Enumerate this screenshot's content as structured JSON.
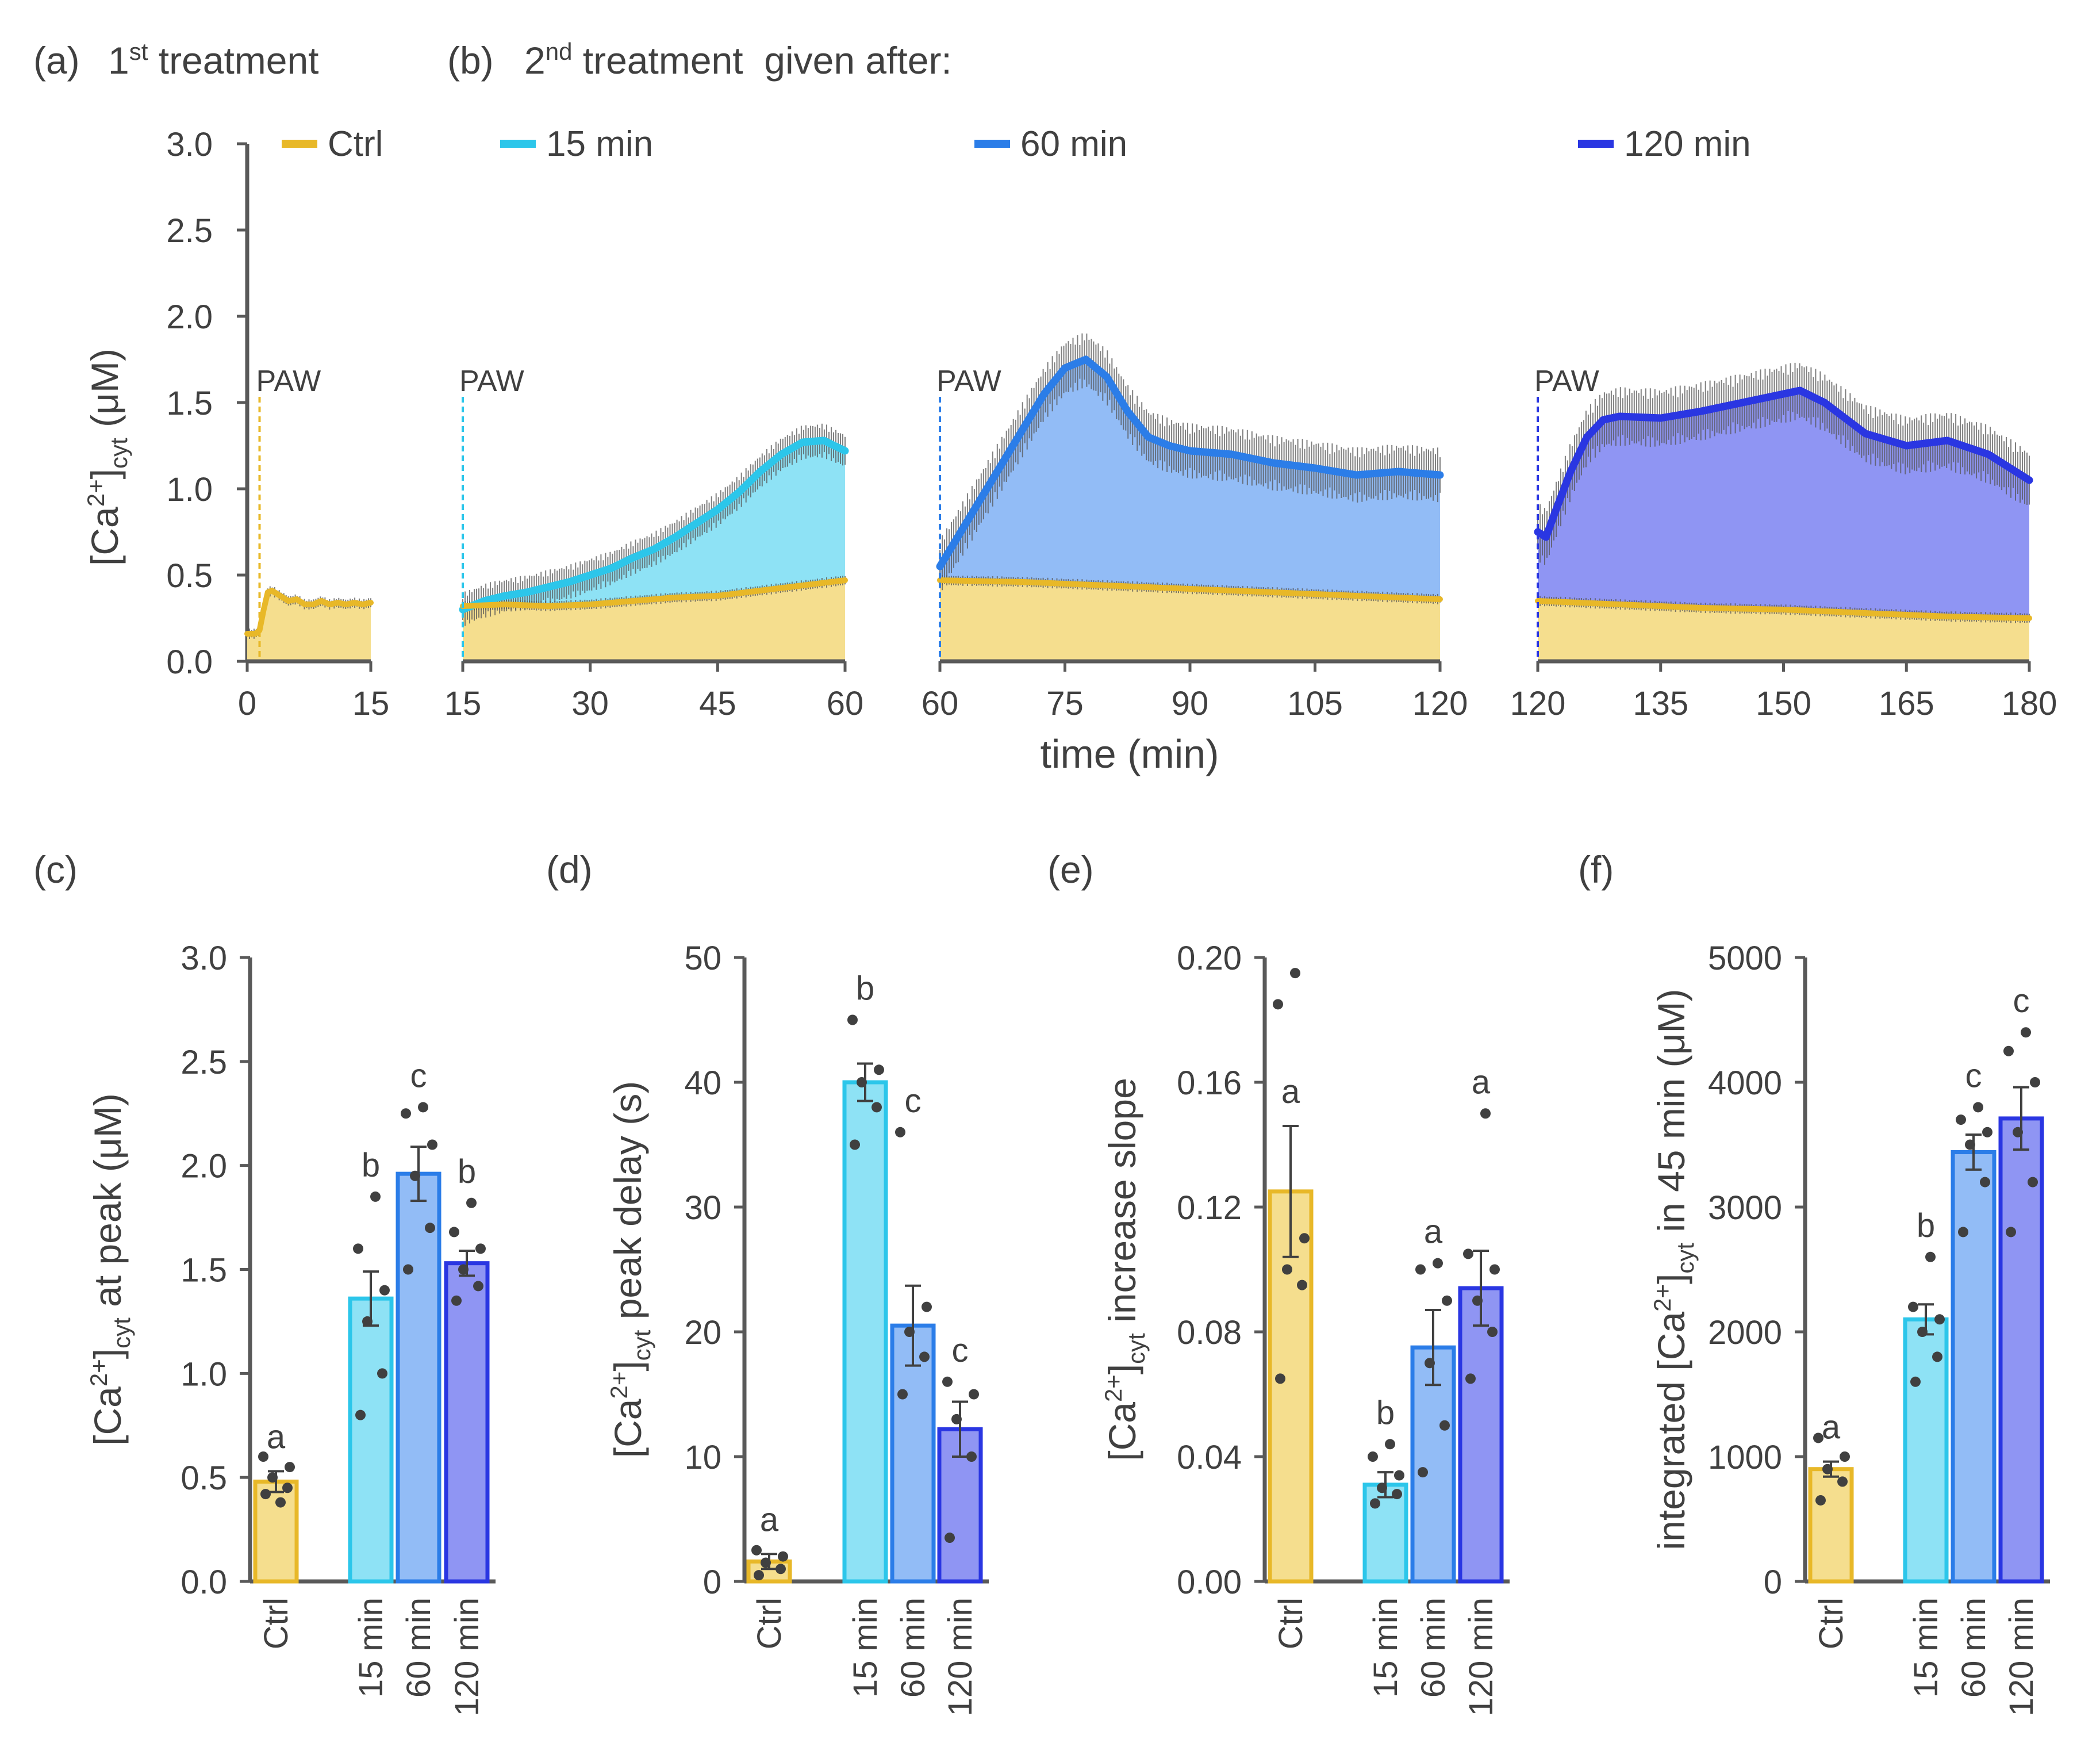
{
  "colors": {
    "ctrl": "#E8B828",
    "ctrl_fill": "#F5DE8E",
    "m15": "#2CC6EA",
    "m15_fill": "#8EE2F5",
    "m60": "#2B7DE8",
    "m60_fill": "#92BCF6",
    "m120": "#2A36E2",
    "m120_fill": "#8F95F3",
    "axis": "#595959",
    "text": "#404040",
    "error": "#404040",
    "dots": "#404040"
  },
  "panel_labels": {
    "a": "(a)",
    "a_title_pre": "1",
    "a_title_sup": "st",
    "a_title_post": " treatment",
    "b": "(b)",
    "b_title_pre": "2",
    "b_title_sup": "nd",
    "b_title_post": " treatment  given after:",
    "c": "(c)",
    "d": "(d)",
    "e": "(e)",
    "f": "(f)"
  },
  "chart_data": [
    {
      "type": "line",
      "id": "time-course",
      "title": "",
      "xlabel": "time (min)",
      "ylabel_pre": "[Ca",
      "ylabel_sup": "2+",
      "ylabel_mid": "]",
      "ylabel_sub": "cyt",
      "ylabel_post": " (μM)",
      "ylim": [
        0,
        3
      ],
      "yticks": [
        "0.0",
        "0.5",
        "1.0",
        "1.5",
        "2.0",
        "2.5",
        "3.0"
      ],
      "treatment_label": "PAW",
      "legend": [
        {
          "name": "Ctrl",
          "color_key": "ctrl"
        },
        {
          "name": "15 min",
          "color_key": "m15"
        },
        {
          "name": "60 min",
          "color_key": "m60"
        },
        {
          "name": "120 min",
          "color_key": "m120"
        }
      ],
      "segments": [
        {
          "name": "1st treatment",
          "xlim": [
            0,
            15
          ],
          "xticks": [
            "0",
            "15"
          ],
          "treatment_time": 1.5,
          "series": [
            {
              "name": "Ctrl",
              "color_key": "ctrl",
              "x": [
                0,
                1,
                1.5,
                2,
                2.5,
                3,
                4,
                5,
                6,
                7,
                8,
                9,
                10,
                11,
                12,
                13,
                14,
                15
              ],
              "y": [
                0.16,
                0.16,
                0.18,
                0.3,
                0.4,
                0.41,
                0.38,
                0.35,
                0.36,
                0.33,
                0.33,
                0.35,
                0.33,
                0.34,
                0.33,
                0.34,
                0.33,
                0.34
              ]
            }
          ]
        },
        {
          "name": "15 min",
          "xlim": [
            15,
            60
          ],
          "xticks": [
            "15",
            "30",
            "45",
            "60"
          ],
          "treatment_time": 15,
          "series": [
            {
              "name": "Ctrl",
              "color_key": "ctrl",
              "x": [
                15,
                20,
                25,
                30,
                35,
                40,
                45,
                50,
                55,
                60
              ],
              "y": [
                0.32,
                0.33,
                0.32,
                0.33,
                0.35,
                0.37,
                0.38,
                0.41,
                0.44,
                0.47
              ]
            },
            {
              "name": "15 min",
              "color_key": "m15",
              "error": 0.1,
              "x": [
                15,
                17.5,
                20,
                22.5,
                25,
                27.5,
                30,
                32.5,
                35,
                37.5,
                40,
                42.5,
                45,
                47.5,
                50,
                52.5,
                55,
                57.5,
                60
              ],
              "y": [
                0.3,
                0.35,
                0.38,
                0.4,
                0.43,
                0.46,
                0.5,
                0.54,
                0.6,
                0.65,
                0.72,
                0.8,
                0.88,
                0.98,
                1.1,
                1.2,
                1.27,
                1.28,
                1.22
              ]
            }
          ]
        },
        {
          "name": "60 min",
          "xlim": [
            60,
            120
          ],
          "xticks": [
            "60",
            "75",
            "90",
            "105",
            "120"
          ],
          "treatment_time": 60,
          "series": [
            {
              "name": "Ctrl",
              "color_key": "ctrl",
              "x": [
                60,
                70,
                80,
                90,
                100,
                110,
                120
              ],
              "y": [
                0.47,
                0.46,
                0.44,
                0.42,
                0.4,
                0.38,
                0.36
              ]
            },
            {
              "name": "60 min",
              "color_key": "m60",
              "error": 0.16,
              "x": [
                60,
                62.5,
                65,
                67.5,
                70,
                72.5,
                75,
                77.5,
                80,
                82.5,
                85,
                87.5,
                90,
                95,
                100,
                105,
                110,
                115,
                120
              ],
              "y": [
                0.55,
                0.75,
                0.95,
                1.15,
                1.35,
                1.55,
                1.7,
                1.75,
                1.65,
                1.45,
                1.3,
                1.25,
                1.22,
                1.2,
                1.15,
                1.12,
                1.08,
                1.1,
                1.08
              ]
            }
          ]
        },
        {
          "name": "120 min",
          "xlim": [
            120,
            180
          ],
          "xticks": [
            "120",
            "135",
            "150",
            "165",
            "180"
          ],
          "treatment_time": 120,
          "series": [
            {
              "name": "Ctrl",
              "color_key": "ctrl",
              "x": [
                120,
                130,
                140,
                150,
                160,
                170,
                180
              ],
              "y": [
                0.35,
                0.33,
                0.31,
                0.3,
                0.28,
                0.26,
                0.25
              ]
            },
            {
              "name": "120 min",
              "color_key": "m120",
              "error": 0.17,
              "x": [
                120,
                121,
                122,
                124,
                126,
                128,
                130,
                135,
                140,
                145,
                150,
                152,
                155,
                160,
                165,
                170,
                175,
                180
              ],
              "y": [
                0.75,
                0.72,
                0.85,
                1.1,
                1.3,
                1.4,
                1.42,
                1.41,
                1.45,
                1.5,
                1.55,
                1.57,
                1.5,
                1.32,
                1.25,
                1.28,
                1.2,
                1.05
              ]
            }
          ]
        }
      ]
    },
    {
      "type": "bar",
      "id": "peak",
      "ylabel_pre": "[Ca",
      "ylabel_sup": "2+",
      "ylabel_mid": "]",
      "ylabel_sub": "cyt",
      "ylabel_post": " at peak (μM)",
      "ylim": [
        0,
        3
      ],
      "yticks": [
        "0.0",
        "0.5",
        "1.0",
        "1.5",
        "2.0",
        "2.5",
        "3.0"
      ],
      "categories": [
        "Ctrl",
        "15 min",
        "60 min",
        "120 min"
      ],
      "values": [
        0.48,
        1.36,
        1.96,
        1.53
      ],
      "errors": [
        0.05,
        0.13,
        0.13,
        0.06
      ],
      "letters": [
        "a",
        "b",
        "c",
        "b"
      ],
      "points": [
        [
          0.42,
          0.45,
          0.5,
          0.55,
          0.6,
          0.38
        ],
        [
          0.8,
          1.0,
          1.25,
          1.4,
          1.6,
          1.85
        ],
        [
          1.5,
          1.7,
          1.95,
          2.1,
          2.25,
          2.28
        ],
        [
          1.35,
          1.42,
          1.5,
          1.6,
          1.68,
          1.82
        ]
      ]
    },
    {
      "type": "bar",
      "id": "delay",
      "ylabel_pre": "[Ca",
      "ylabel_sup": "2+",
      "ylabel_mid": "]",
      "ylabel_sub": "cyt",
      "ylabel_post": " peak delay (s)",
      "ylim": [
        0,
        50
      ],
      "yticks": [
        "0",
        "10",
        "20",
        "30",
        "40",
        "50"
      ],
      "categories": [
        "Ctrl",
        "15 min",
        "60 min",
        "120 min"
      ],
      "values": [
        1.6,
        40,
        20.5,
        12.2
      ],
      "errors": [
        0.6,
        1.5,
        3.2,
        2.2
      ],
      "letters": [
        "a",
        "b",
        "c",
        "c"
      ],
      "points": [
        [
          0.5,
          1.0,
          1.5,
          2.0,
          2.5
        ],
        [
          35,
          38,
          40,
          41,
          45
        ],
        [
          15,
          18,
          20,
          22,
          36
        ],
        [
          3.5,
          10,
          13,
          15,
          16
        ]
      ]
    },
    {
      "type": "bar",
      "id": "slope",
      "ylabel_pre": "[Ca",
      "ylabel_sup": "2+",
      "ylabel_mid": "]",
      "ylabel_sub": "cyt",
      "ylabel_post": " increase slope",
      "ylim": [
        0,
        0.2
      ],
      "yticks": [
        "0.00",
        "0.04",
        "0.08",
        "0.12",
        "0.16",
        "0.20"
      ],
      "categories": [
        "Ctrl",
        "15 min",
        "60 min",
        "120 min"
      ],
      "values": [
        0.125,
        0.031,
        0.075,
        0.094
      ],
      "errors": [
        0.021,
        0.004,
        0.012,
        0.012
      ],
      "letters": [
        "a",
        "b",
        "a",
        "a"
      ],
      "points": [
        [
          0.065,
          0.095,
          0.1,
          0.11,
          0.185,
          0.195
        ],
        [
          0.025,
          0.028,
          0.03,
          0.034,
          0.04,
          0.044
        ],
        [
          0.035,
          0.05,
          0.07,
          0.09,
          0.1,
          0.102
        ],
        [
          0.065,
          0.08,
          0.09,
          0.1,
          0.105,
          0.15
        ]
      ]
    },
    {
      "type": "bar",
      "id": "integrated",
      "ylabel_pre": "integrated [Ca",
      "ylabel_sup": "2+",
      "ylabel_mid": "]",
      "ylabel_sub": "cyt",
      "ylabel_post": " in 45 min (μM)",
      "ylim": [
        0,
        5000
      ],
      "yticks": [
        "0",
        "1000",
        "2000",
        "3000",
        "4000",
        "5000"
      ],
      "categories": [
        "Ctrl",
        "15 min",
        "60 min",
        "120 min"
      ],
      "values": [
        900,
        2100,
        3440,
        3710
      ],
      "errors": [
        60,
        120,
        140,
        250
      ],
      "letters": [
        "a",
        "b",
        "c",
        "c"
      ],
      "points": [
        [
          650,
          800,
          900,
          1000,
          1150
        ],
        [
          1600,
          1800,
          2000,
          2100,
          2200,
          2600
        ],
        [
          2800,
          3200,
          3500,
          3600,
          3700,
          3800
        ],
        [
          2800,
          3200,
          3600,
          4000,
          4250,
          4400
        ]
      ]
    }
  ]
}
